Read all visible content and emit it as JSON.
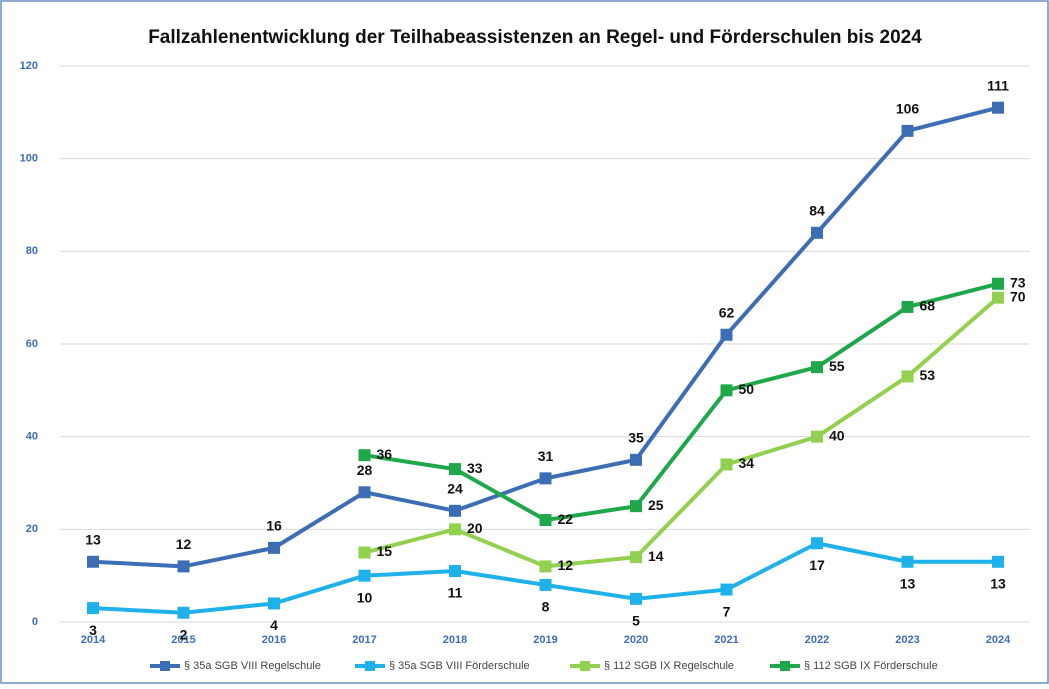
{
  "chart_data": {
    "type": "line",
    "title": "Fallzahlenentwicklung der Teilhabeassistenzen an Regel- und Förderschulen bis 2024",
    "categories": [
      "2014",
      "2015",
      "2016",
      "2017",
      "2018",
      "2019",
      "2020",
      "2021",
      "2022",
      "2023",
      "2024"
    ],
    "series": [
      {
        "name": "§ 35a SGB VIII Regelschule",
        "color": "#3d6db5",
        "values": [
          13,
          12,
          16,
          28,
          24,
          31,
          35,
          62,
          84,
          106,
          111
        ]
      },
      {
        "name": "§ 35a SGB VIII Förderschule",
        "color": "#1fb1ea",
        "values": [
          3,
          2,
          4,
          10,
          11,
          8,
          5,
          7,
          17,
          13,
          13
        ]
      },
      {
        "name": "§ 112 SGB IX Regelschule",
        "color": "#92d050",
        "values": [
          null,
          null,
          null,
          15,
          20,
          12,
          14,
          34,
          40,
          53,
          70
        ]
      },
      {
        "name": "§ 112 SGB IX Förderschule",
        "color": "#1ea84a",
        "values": [
          null,
          null,
          null,
          36,
          33,
          22,
          25,
          50,
          55,
          68,
          73
        ]
      }
    ],
    "ylim": [
      0,
      120
    ],
    "yticks": [
      0,
      20,
      40,
      60,
      80,
      100,
      120
    ],
    "grid": true,
    "legend": "bottom"
  }
}
